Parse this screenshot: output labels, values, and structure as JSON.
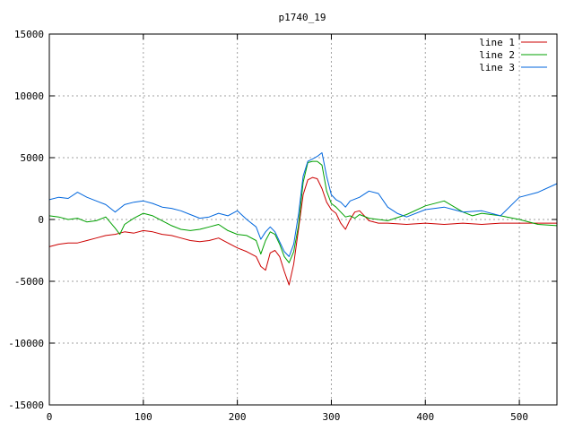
{
  "chart_data": {
    "type": "line",
    "title": "p1740_19",
    "xlabel": "",
    "ylabel": "",
    "xlim": [
      0,
      540
    ],
    "ylim": [
      -15000,
      15000
    ],
    "x_ticks": [
      0,
      100,
      200,
      300,
      400,
      500
    ],
    "y_ticks": [
      -15000,
      -10000,
      -5000,
      0,
      5000,
      10000,
      15000
    ],
    "grid": true,
    "legend_position": "top-right",
    "series": [
      {
        "name": "line 1",
        "color": "#cc0000",
        "x": [
          0,
          10,
          20,
          30,
          40,
          50,
          60,
          70,
          80,
          90,
          100,
          110,
          120,
          130,
          140,
          150,
          160,
          170,
          180,
          190,
          200,
          210,
          220,
          225,
          230,
          235,
          240,
          245,
          250,
          255,
          260,
          265,
          270,
          275,
          280,
          285,
          290,
          295,
          300,
          305,
          310,
          315,
          320,
          325,
          330,
          340,
          350,
          360,
          380,
          400,
          420,
          440,
          460,
          480,
          500,
          520,
          540
        ],
        "y": [
          -2200,
          -2000,
          -1900,
          -1900,
          -1700,
          -1500,
          -1300,
          -1200,
          -1000,
          -1100,
          -900,
          -1000,
          -1200,
          -1300,
          -1500,
          -1700,
          -1800,
          -1700,
          -1500,
          -1900,
          -2300,
          -2600,
          -3000,
          -3800,
          -4100,
          -2700,
          -2500,
          -3000,
          -4200,
          -5300,
          -3600,
          -800,
          2000,
          3200,
          3400,
          3300,
          2500,
          1400,
          800,
          500,
          -300,
          -800,
          0,
          600,
          700,
          -100,
          -300,
          -300,
          -400,
          -300,
          -400,
          -300,
          -400,
          -300,
          -300,
          -300,
          -300
        ]
      },
      {
        "name": "line 2",
        "color": "#00a000",
        "x": [
          0,
          10,
          20,
          30,
          40,
          50,
          60,
          70,
          75,
          80,
          90,
          100,
          110,
          120,
          130,
          140,
          150,
          160,
          170,
          180,
          190,
          200,
          210,
          220,
          225,
          230,
          235,
          240,
          245,
          250,
          255,
          260,
          265,
          270,
          275,
          280,
          285,
          290,
          295,
          300,
          305,
          310,
          315,
          320,
          325,
          330,
          340,
          350,
          360,
          380,
          400,
          420,
          440,
          450,
          460,
          480,
          500,
          520,
          540
        ],
        "y": [
          300,
          200,
          0,
          100,
          -200,
          -100,
          200,
          -700,
          -1200,
          -400,
          100,
          500,
          300,
          -100,
          -500,
          -800,
          -900,
          -800,
          -600,
          -400,
          -900,
          -1200,
          -1300,
          -1700,
          -2800,
          -1700,
          -1000,
          -1200,
          -2000,
          -3000,
          -3500,
          -2600,
          -500,
          3000,
          4600,
          4700,
          4700,
          4400,
          2300,
          1300,
          1000,
          600,
          200,
          300,
          100,
          400,
          100,
          0,
          -100,
          400,
          1100,
          1500,
          600,
          300,
          500,
          300,
          0,
          -400,
          -500
        ]
      },
      {
        "name": "line 3",
        "color": "#0066dd",
        "x": [
          0,
          10,
          20,
          30,
          40,
          50,
          60,
          70,
          80,
          90,
          100,
          110,
          120,
          130,
          140,
          150,
          160,
          170,
          180,
          190,
          200,
          210,
          220,
          225,
          230,
          235,
          240,
          245,
          250,
          255,
          260,
          265,
          270,
          275,
          280,
          285,
          290,
          295,
          300,
          305,
          310,
          315,
          320,
          330,
          340,
          350,
          360,
          370,
          380,
          400,
          420,
          440,
          460,
          480,
          500,
          520,
          540
        ],
        "y": [
          1600,
          1800,
          1700,
          2200,
          1800,
          1500,
          1200,
          600,
          1200,
          1400,
          1500,
          1300,
          1000,
          900,
          700,
          400,
          100,
          200,
          500,
          300,
          700,
          0,
          -600,
          -1600,
          -1000,
          -600,
          -1000,
          -1800,
          -2600,
          -3000,
          -2000,
          400,
          3500,
          4700,
          4900,
          5100,
          5400,
          3500,
          2000,
          1600,
          1400,
          1000,
          1500,
          1800,
          2300,
          2100,
          1000,
          500,
          200,
          800,
          1000,
          600,
          700,
          300,
          1800,
          2200,
          2900
        ]
      }
    ]
  }
}
